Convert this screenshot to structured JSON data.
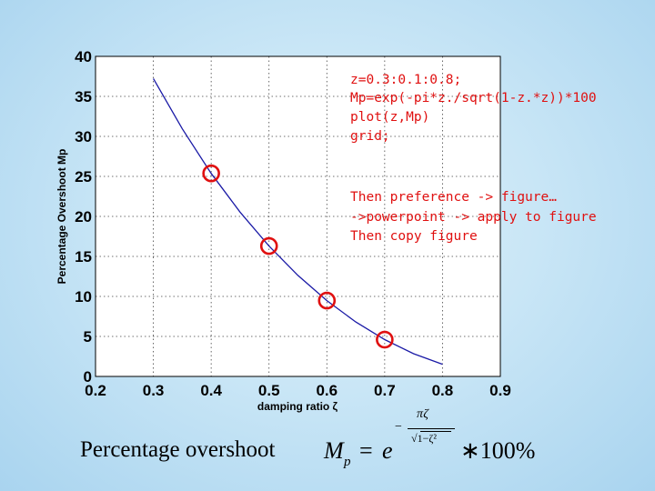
{
  "chart_data": {
    "type": "line",
    "xlabel": "damping ratio ζ",
    "ylabel": "Percentage Overshoot Mp",
    "xlim": [
      0.2,
      0.9
    ],
    "ylim": [
      0,
      40
    ],
    "x_ticks": [
      "0.2",
      "0.3",
      "0.4",
      "0.5",
      "0.6",
      "0.7",
      "0.8",
      "0.9"
    ],
    "y_ticks": [
      "0",
      "5",
      "10",
      "15",
      "20",
      "25",
      "30",
      "35",
      "40"
    ],
    "grid": true,
    "series": [
      {
        "x": [
          0.3,
          0.35,
          0.4,
          0.45,
          0.5,
          0.55,
          0.6,
          0.65,
          0.7,
          0.75,
          0.8
        ],
        "y": [
          37.23,
          30.94,
          25.38,
          20.53,
          16.3,
          12.63,
          9.48,
          6.81,
          4.6,
          2.84,
          1.52
        ],
        "color": "#1a1aa6"
      }
    ],
    "markers": {
      "x": [
        0.4,
        0.5,
        0.6,
        0.7
      ],
      "y": [
        25.38,
        16.3,
        9.48,
        4.6
      ],
      "color": "#e01010",
      "shape": "circle"
    }
  },
  "code_lines": [
    "z=0.3:0.1:0.8;",
    "Mp=exp(-pi*z./sqrt(1-z.*z))*100",
    "plot(z,Mp)",
    "grid;"
  ],
  "note_lines": [
    "Then preference -> figure…",
    "->powerpoint -> apply to figure",
    "Then copy figure"
  ],
  "formula": {
    "label": "Percentage overshoot",
    "symbol": "M",
    "subscript": "p",
    "equals": "=",
    "base": "e",
    "exp_minus": "−",
    "exp_numerator": "πζ",
    "exp_denominator": "1−ζ²",
    "tail": "∗100%"
  }
}
